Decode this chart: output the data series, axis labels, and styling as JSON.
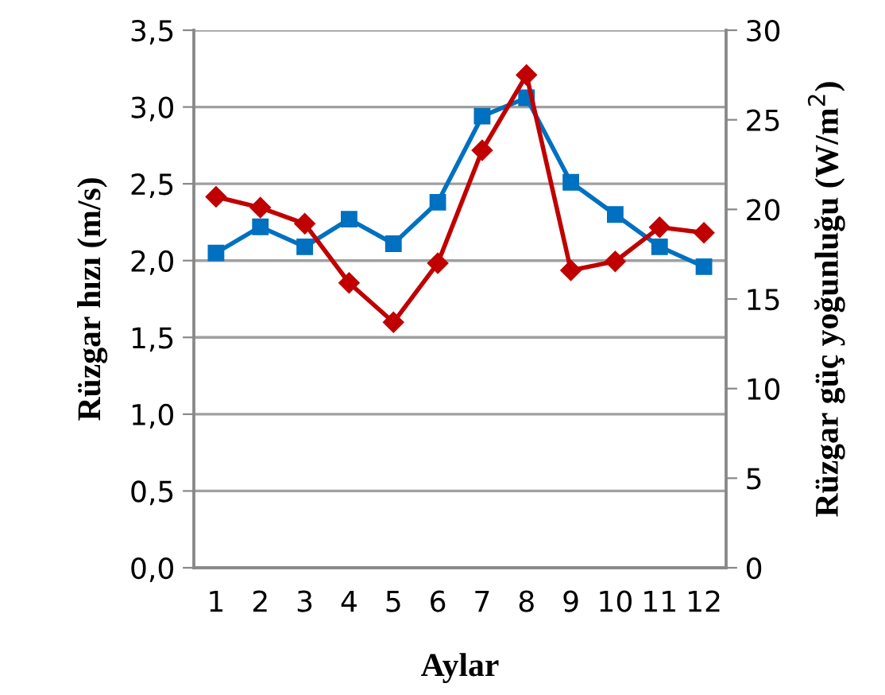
{
  "chart_data": {
    "type": "line",
    "xlabel": "Aylar",
    "ylabel": "Rüzgar hızı (m/s)",
    "y2label": "Rüzgar güç yoğunluğu (W/m$^{2}$)",
    "categories": [
      "1",
      "2",
      "3",
      "4",
      "5",
      "6",
      "7",
      "8",
      "9",
      "10",
      "11",
      "12"
    ],
    "series": [
      {
        "color": "#0070c0",
        "marker": "square",
        "values": [
          2.05,
          2.22,
          2.09,
          2.27,
          2.11,
          2.38,
          2.94,
          3.06,
          2.51,
          2.3,
          2.09,
          1.96
        ]
      },
      {
        "color": "#c00000",
        "marker": "diamond",
        "axis": "y2",
        "values": [
          20.7,
          20.1,
          19.2,
          15.9,
          13.7,
          17.0,
          23.3,
          27.5,
          16.6,
          17.1,
          19.0,
          18.7
        ]
      }
    ],
    "ylim": [
      0,
      3.5
    ],
    "yticks": [
      {
        "value": 0,
        "label": "0,0"
      },
      {
        "value": 0.5,
        "label": "0,5"
      },
      {
        "value": 1,
        "label": "1,0"
      },
      {
        "value": 1.5,
        "label": "1,5"
      },
      {
        "value": 2,
        "label": "2,0"
      },
      {
        "value": 2.5,
        "label": "2,5"
      },
      {
        "value": 3,
        "label": "3,0"
      },
      {
        "value": 3.5,
        "label": "3,5"
      }
    ],
    "y2lim": [
      0,
      30
    ],
    "y2ticks": [
      0,
      5,
      10,
      15,
      20,
      25,
      30
    ],
    "grid": "y"
  }
}
